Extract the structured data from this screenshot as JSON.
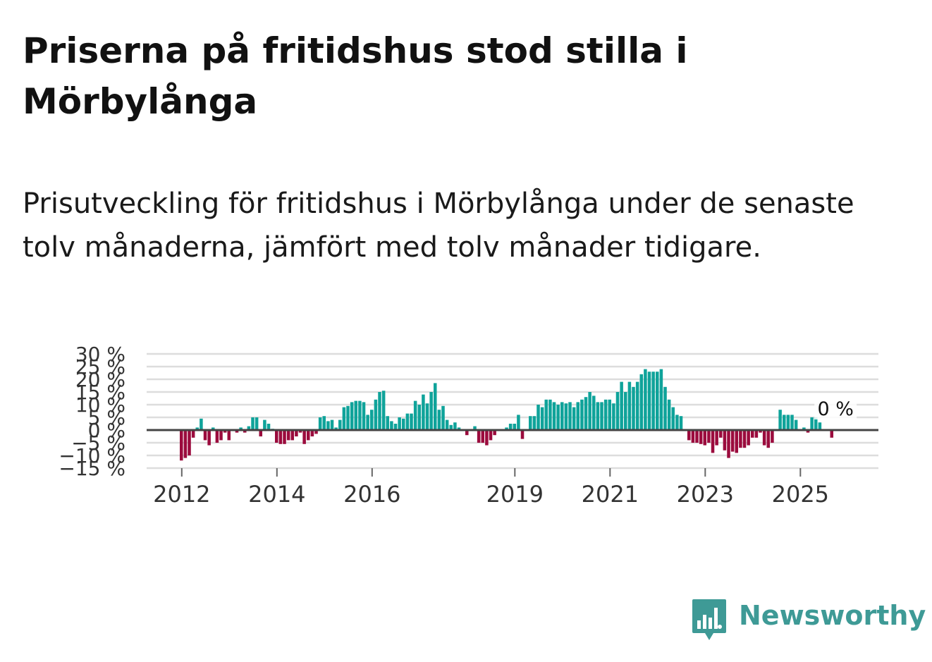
{
  "title": "Priserna på fritidshus stod stilla i Mörbylånga",
  "subtitle": "Prisutveckling för fritidshus i Mörbylånga under de senaste tolv månaderna, jämfört med tolv månader tidigare.",
  "brand": {
    "name": "Newsworthy",
    "logo_icon": "bar-chart-badge-icon",
    "color": "#3e9a96"
  },
  "colors": {
    "positive": "#0fa39a",
    "negative": "#9b0b3d",
    "zero_line": "#444444",
    "grid": "#dddddd"
  },
  "chart_data": {
    "type": "bar",
    "x_start": "2012-01",
    "x_end": "2025-12",
    "x_ticks": [
      {
        "label": "2012",
        "date": "2012-01"
      },
      {
        "label": "2014",
        "date": "2014-01"
      },
      {
        "label": "2016",
        "date": "2016-01"
      },
      {
        "label": "2019",
        "date": "2019-01"
      },
      {
        "label": "2021",
        "date": "2021-01"
      },
      {
        "label": "2023",
        "date": "2023-01"
      },
      {
        "label": "2025",
        "date": "2025-01"
      }
    ],
    "y_ticks": [
      {
        "label": "30 %",
        "value": 30
      },
      {
        "label": "25 %",
        "value": 25
      },
      {
        "label": "20 %",
        "value": 20
      },
      {
        "label": "15 %",
        "value": 15
      },
      {
        "label": "10 %",
        "value": 10
      },
      {
        "label": "5 %",
        "value": 5
      },
      {
        "label": "0 %",
        "value": 0
      },
      {
        "label": "−5 %",
        "value": -5
      },
      {
        "label": "−10 %",
        "value": -10
      },
      {
        "label": "−15 %",
        "value": -15
      }
    ],
    "ylim": [
      -15,
      30
    ],
    "grid": true,
    "last_value_label": "0 %",
    "values": [
      -12,
      -11,
      -10,
      -3,
      1,
      4.5,
      -4,
      -6,
      1,
      -5,
      -4,
      -1,
      -4,
      0,
      -1,
      1,
      -1,
      1.5,
      5,
      5,
      -2.5,
      4,
      2.5,
      0.5,
      -5,
      -5.5,
      -5.5,
      -4,
      -4,
      -2.5,
      -1,
      -5.5,
      -4,
      -2.5,
      -1.5,
      5,
      5.5,
      3.5,
      4,
      1,
      4,
      9,
      9.5,
      11,
      11.5,
      11.5,
      11,
      6,
      8,
      12,
      15,
      15.5,
      5.5,
      3.5,
      2.5,
      5,
      4.5,
      6.5,
      6.5,
      11.5,
      10,
      14,
      10.5,
      15,
      18.5,
      8,
      9.5,
      4,
      2,
      3,
      1,
      0,
      -2,
      0,
      1.5,
      -5,
      -5,
      -6,
      -4,
      -2,
      0,
      0,
      1,
      2.5,
      2.5,
      6,
      -3.5,
      0,
      5.5,
      5.5,
      10,
      9,
      12,
      12,
      11,
      10,
      11,
      10.5,
      11,
      9,
      11,
      12,
      13,
      15,
      13.5,
      11,
      11,
      12,
      12,
      10.5,
      15,
      19,
      15,
      19,
      17,
      19,
      22,
      24,
      23,
      23,
      23,
      24,
      17,
      12,
      9,
      6,
      5.5,
      0,
      -4,
      -5,
      -5,
      -5.5,
      -6,
      -5,
      -9,
      -6,
      -3,
      -8,
      -11,
      -8.5,
      -9,
      -7,
      -7,
      -6,
      -3,
      -3,
      -1,
      -6,
      -7,
      -5,
      0,
      8,
      6,
      6,
      6,
      4,
      0,
      1,
      -1,
      5,
      5,
      3,
      0,
      0,
      -3,
      0,
      0,
      0
    ]
  }
}
